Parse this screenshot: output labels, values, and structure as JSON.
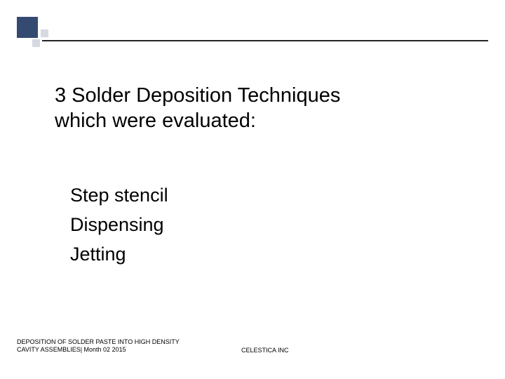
{
  "decoration": {
    "big_square_color": "#344a71",
    "small_square_color": "#d5d9e2"
  },
  "title": {
    "line1": "3  Solder Deposition Techniques",
    "line2": "which were evaluated:"
  },
  "list": {
    "item1": "Step stencil",
    "item2": "Dispensing",
    "item3": "Jetting"
  },
  "footer": {
    "left_line1": "DEPOSITION OF SOLDER PASTE INTO HIGH DENSITY",
    "left_line2": "CAVITY ASSEMBLIES| Month 02 2015",
    "center": "CELESTICA INC"
  }
}
